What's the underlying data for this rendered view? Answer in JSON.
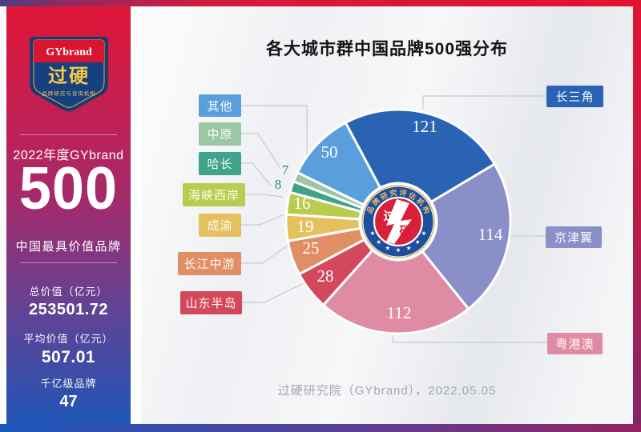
{
  "page": {
    "title": "各大城市群中国品牌500强分布",
    "footer": "过硬研究院（GYbrand），2022.05.05"
  },
  "sidebar": {
    "logo": {
      "top": "GYbrand",
      "name": "过硬",
      "tagline": "品牌研究与咨询机构"
    },
    "year_line": "2022年度GYbrand",
    "big_number": "500",
    "subtitle": "中国最具价值品牌",
    "stats": [
      {
        "label": "总价值（亿元）",
        "value": "253501.72"
      },
      {
        "label": "平均价值（亿元）",
        "value": "507.01"
      },
      {
        "label": "千亿级品牌",
        "value": "47"
      }
    ]
  },
  "seal": {
    "ring_text": "品牌研究评估机构",
    "char1": "过",
    "char2": "硬"
  },
  "chart_data": {
    "type": "pie",
    "title": "各大城市群中国品牌500强分布",
    "total": 500,
    "start_angle_deg": -28,
    "legend_position": "callout-boxes",
    "slices": [
      {
        "label": "长三角",
        "value": 121,
        "color": "#2a63b3",
        "side": "right"
      },
      {
        "label": "京津翼",
        "value": 114,
        "color": "#8b8fc8",
        "side": "right"
      },
      {
        "label": "粤港澳",
        "value": 112,
        "color": "#e08ba4",
        "side": "right"
      },
      {
        "label": "山东半岛",
        "value": 28,
        "color": "#d4485c",
        "side": "left"
      },
      {
        "label": "长江中游",
        "value": 25,
        "color": "#e28e64",
        "side": "left"
      },
      {
        "label": "成渝",
        "value": 19,
        "color": "#e5c05e",
        "side": "left"
      },
      {
        "label": "海峡西岸",
        "value": 16,
        "color": "#b8cc4e",
        "side": "left"
      },
      {
        "label": "哈长",
        "value": 8,
        "color": "#3fa289",
        "side": "left"
      },
      {
        "label": "中原",
        "value": 7,
        "color": "#9cc6a6",
        "side": "left"
      },
      {
        "label": "其他",
        "value": 50,
        "color": "#5b9edc",
        "side": "left"
      }
    ],
    "outside_value_color": "#2e8570"
  }
}
